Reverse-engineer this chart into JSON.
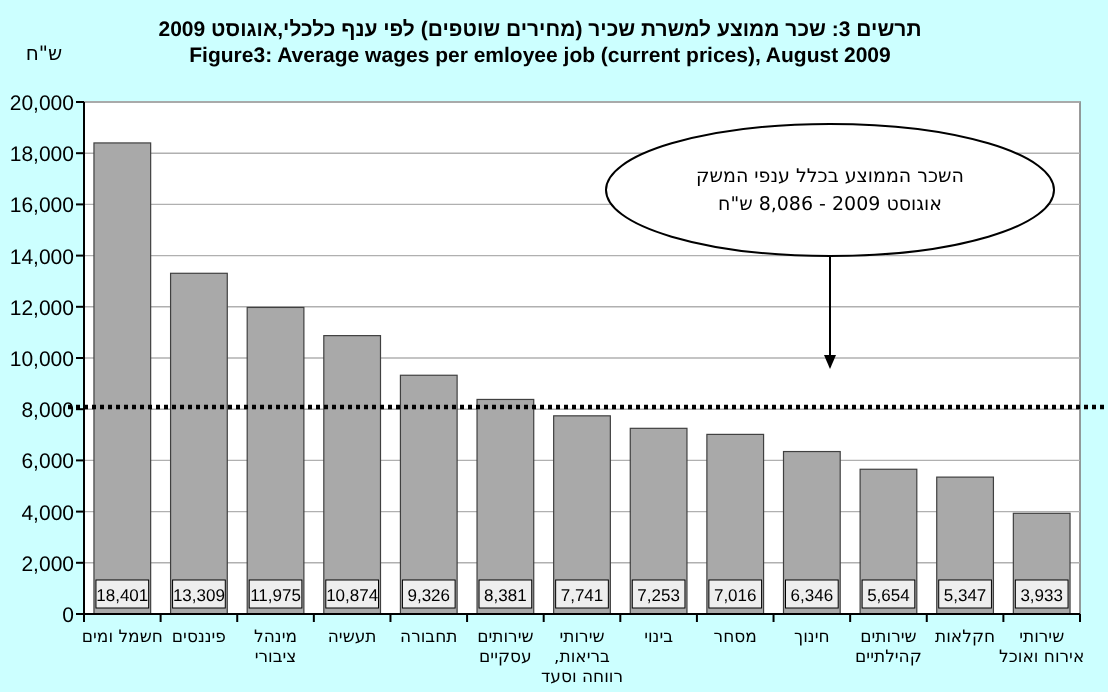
{
  "chart_data": {
    "type": "bar",
    "title": "תרשים 3: שכר ממוצע למשרת שכיר (מחירים שוטפים) לפי ענף כלכלי,אוגוסט 2009",
    "subtitle": "Figure3: Average wages per emloyee job (current prices), August 2009",
    "ylabel": "ש\"ח",
    "categories": [
      "חשמל ומים",
      "פיננסים",
      "מינהל ציבורי",
      "תעשיה",
      "תחבורה",
      "שירותים עסקיים",
      "שירותי בריאות, רווחה וסעד",
      "בינוי",
      "מסחר",
      "חינוך",
      "שירותים קהילתיים",
      "חקלאות",
      "שירותי אירוח ואוכל"
    ],
    "values": [
      18401,
      13309,
      11975,
      10874,
      9326,
      8381,
      7741,
      7253,
      7016,
      6346,
      5654,
      5347,
      3933
    ],
    "color": "#a9a9a9",
    "value_labels": [
      "18,401",
      "13,309",
      "11,975",
      "10,874",
      "9,326",
      "8,381",
      "7,741",
      "7,253",
      "7,016",
      "6,346",
      "5,654",
      "5,347",
      "3,933"
    ],
    "ylim": [
      0,
      20000
    ],
    "yticks": [
      {
        "value": 0,
        "label": "0"
      },
      {
        "value": 2000,
        "label": "2,000"
      },
      {
        "value": 4000,
        "label": "4,000"
      },
      {
        "value": 6000,
        "label": "6,000"
      },
      {
        "value": 8000,
        "label": "8,000"
      },
      {
        "value": 10000,
        "label": "10,000"
      },
      {
        "value": 12000,
        "label": "12,000"
      },
      {
        "value": 14000,
        "label": "14,000"
      },
      {
        "value": 16000,
        "label": "16,000"
      },
      {
        "value": 18000,
        "label": "18,000"
      },
      {
        "value": 20000,
        "label": "20,000"
      }
    ],
    "grid": "y",
    "ref_lines": [
      {
        "axis": "y",
        "value": 8086,
        "label": "השכר הממוצע בכלל ענפי המשק\nאוגוסט 2009 - 8,086 ש\"ח",
        "color": "#000000",
        "line_style": "dotted"
      }
    ]
  }
}
